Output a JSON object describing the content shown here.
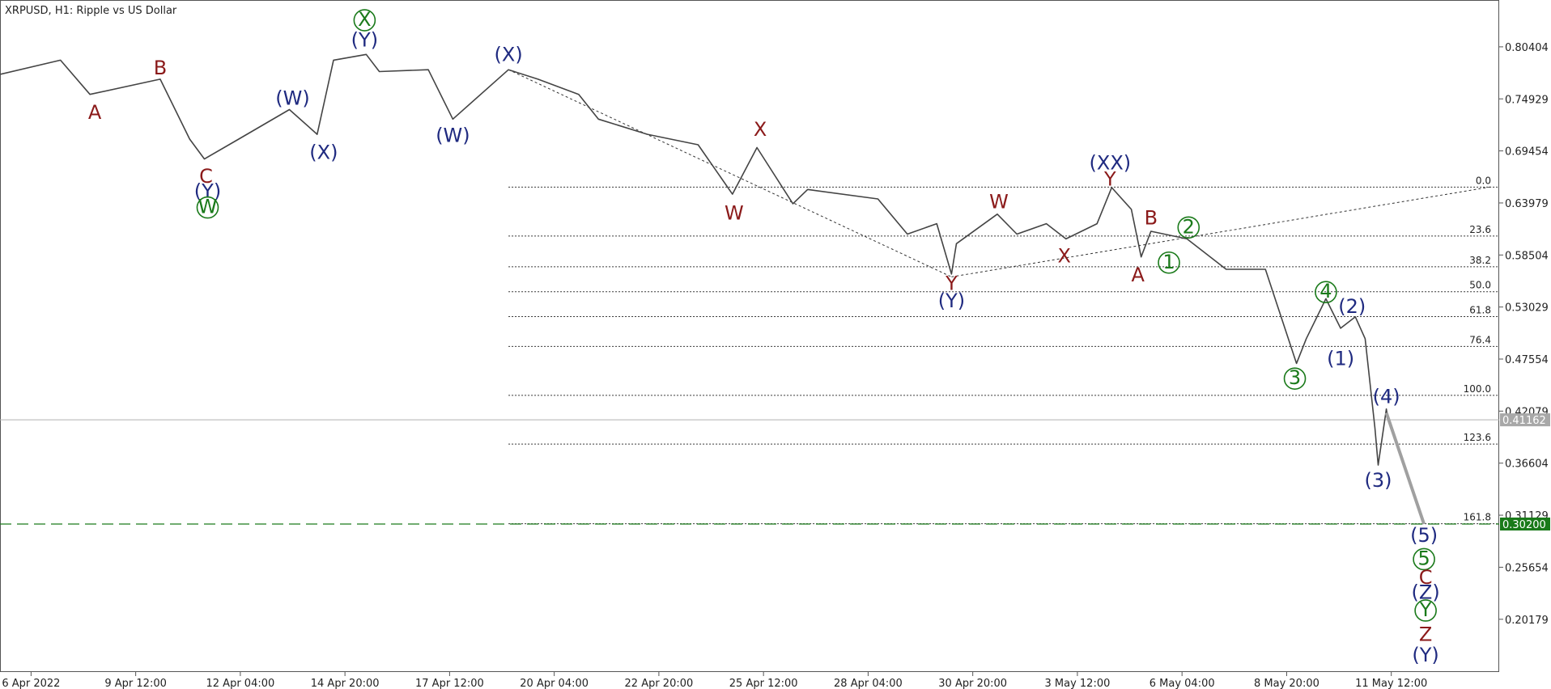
{
  "chart_data": {
    "type": "line",
    "title": "XRPUSD, H1:  Ripple vs US Dollar",
    "xlim": [
      0,
      917
    ],
    "ylim": [
      0.1463,
      0.8533
    ],
    "xticks": [
      {
        "value": 19,
        "label": "6 Apr 2022"
      },
      {
        "value": 83,
        "label": "9 Apr 12:00"
      },
      {
        "value": 147,
        "label": "12 Apr 04:00"
      },
      {
        "value": 211,
        "label": "14 Apr 20:00"
      },
      {
        "value": 275,
        "label": "17 Apr 12:00"
      },
      {
        "value": 339,
        "label": "20 Apr 04:00"
      },
      {
        "value": 403,
        "label": "22 Apr 20:00"
      },
      {
        "value": 467,
        "label": "25 Apr 12:00"
      },
      {
        "value": 531,
        "label": "28 Apr 04:00"
      },
      {
        "value": 595,
        "label": "30 Apr 20:00"
      },
      {
        "value": 659,
        "label": "3 May 12:00"
      },
      {
        "value": 723,
        "label": "6 May 04:00"
      },
      {
        "value": 787,
        "label": "8 May 20:00"
      },
      {
        "value": 851,
        "label": "11 May 12:00"
      }
    ],
    "yticks": [
      0.80404,
      0.74929,
      0.69454,
      0.63979,
      0.58504,
      0.53029,
      0.47554,
      0.42079,
      0.36604,
      0.31129,
      0.25654,
      0.20179
    ],
    "series": [
      {
        "color": "#444444",
        "x": [
          0,
          37,
          55,
          98,
          116,
          125,
          146,
          177,
          194,
          204,
          224,
          232,
          262,
          277,
          311,
          329,
          354,
          366,
          396,
          427,
          448,
          463,
          485,
          494,
          537,
          555,
          573,
          582,
          585,
          610,
          622,
          640,
          652,
          671,
          680,
          692,
          698,
          704,
          726,
          750,
          774,
          793,
          799,
          811,
          820,
          829,
          835,
          841,
          843,
          848,
          849
        ],
        "values": [
          0.775,
          0.79,
          0.754,
          0.77,
          0.707,
          0.686,
          0.707,
          0.738,
          0.712,
          0.79,
          0.796,
          0.778,
          0.78,
          0.728,
          0.78,
          0.77,
          0.754,
          0.728,
          0.712,
          0.701,
          0.649,
          0.698,
          0.639,
          0.654,
          0.644,
          0.607,
          0.618,
          0.565,
          0.597,
          0.628,
          0.607,
          0.618,
          0.602,
          0.618,
          0.656,
          0.633,
          0.583,
          0.61,
          0.602,
          0.57,
          0.57,
          0.471,
          0.497,
          0.539,
          0.508,
          0.52,
          0.497,
          0.403,
          0.364,
          0.423,
          0.411
        ]
      }
    ],
    "fib_start": 311,
    "fib_levels": [
      {
        "label": "0.0",
        "price": 0.6564
      },
      {
        "label": "23.6",
        "price": 0.605
      },
      {
        "label": "38.2",
        "price": 0.5726
      },
      {
        "label": "50.0",
        "price": 0.5464
      },
      {
        "label": "61.8",
        "price": 0.5202
      },
      {
        "label": "76.4",
        "price": 0.4888
      },
      {
        "label": "100.0",
        "price": 0.4374
      },
      {
        "label": "123.6",
        "price": 0.3861
      },
      {
        "label": "161.8",
        "price": 0.3023
      }
    ],
    "current_price": 0.41162,
    "target_price": {
      "value": 0.302,
      "label": "0.30200"
    },
    "target_color": "#1a7a1a",
    "trendlines": [
      {
        "x": [
          311,
          582
        ],
        "y": [
          0.78,
          0.562
        ]
      },
      {
        "x": [
          582,
          913
        ],
        "y": [
          0.562,
          0.657
        ]
      }
    ],
    "projection": {
      "x": [
        848,
        871
      ],
      "y": [
        0.419,
        0.302
      ]
    },
    "wave_labels": [
      {
        "text": "A",
        "x": 58,
        "y": 0.735,
        "color": "#8b1a1a"
      },
      {
        "text": "B",
        "x": 98,
        "y": 0.782,
        "color": "#8b1a1a"
      },
      {
        "text": "C",
        "x": 126,
        "y": 0.668,
        "color": "#8b1a1a"
      },
      {
        "text": "(Y)",
        "x": 127,
        "y": 0.652,
        "color": "#1f2a80"
      },
      {
        "text": "W",
        "x": 127,
        "y": 0.635,
        "color": "#1a7a1a",
        "circle": true
      },
      {
        "text": "(W)",
        "x": 179,
        "y": 0.75,
        "color": "#1f2a80"
      },
      {
        "text": "(X)",
        "x": 198,
        "y": 0.693,
        "color": "#1f2a80"
      },
      {
        "text": "X",
        "x": 223,
        "y": 0.832,
        "color": "#1a7a1a",
        "circle": true
      },
      {
        "text": "(Y)",
        "x": 223,
        "y": 0.811,
        "color": "#1f2a80"
      },
      {
        "text": "(W)",
        "x": 277,
        "y": 0.711,
        "color": "#1f2a80"
      },
      {
        "text": "(X)",
        "x": 311,
        "y": 0.796,
        "color": "#1f2a80"
      },
      {
        "text": "X",
        "x": 465,
        "y": 0.717,
        "color": "#8b1a1a"
      },
      {
        "text": "W",
        "x": 449,
        "y": 0.629,
        "color": "#8b1a1a"
      },
      {
        "text": "Y",
        "x": 582,
        "y": 0.555,
        "color": "#8b1a1a"
      },
      {
        "text": "(Y)",
        "x": 582,
        "y": 0.537,
        "color": "#1f2a80"
      },
      {
        "text": "W",
        "x": 611,
        "y": 0.641,
        "color": "#8b1a1a"
      },
      {
        "text": "X",
        "x": 651,
        "y": 0.584,
        "color": "#8b1a1a"
      },
      {
        "text": "(XX)",
        "x": 679,
        "y": 0.682,
        "color": "#1f2a80"
      },
      {
        "text": "Y",
        "x": 679,
        "y": 0.665,
        "color": "#8b1a1a"
      },
      {
        "text": "B",
        "x": 704,
        "y": 0.624,
        "color": "#8b1a1a"
      },
      {
        "text": "A",
        "x": 696,
        "y": 0.564,
        "color": "#8b1a1a"
      },
      {
        "text": "1",
        "x": 715,
        "y": 0.577,
        "color": "#1a7a1a",
        "circle": true
      },
      {
        "text": "2",
        "x": 727,
        "y": 0.614,
        "color": "#1a7a1a",
        "circle": true
      },
      {
        "text": "3",
        "x": 792,
        "y": 0.455,
        "color": "#1a7a1a",
        "circle": true
      },
      {
        "text": "4",
        "x": 811,
        "y": 0.546,
        "color": "#1a7a1a",
        "circle": true
      },
      {
        "text": "(1)",
        "x": 820,
        "y": 0.476,
        "color": "#1f2a80"
      },
      {
        "text": "(2)",
        "x": 827,
        "y": 0.531,
        "color": "#1f2a80"
      },
      {
        "text": "(4)",
        "x": 848,
        "y": 0.436,
        "color": "#1f2a80"
      },
      {
        "text": "(3)",
        "x": 843,
        "y": 0.348,
        "color": "#1f2a80"
      },
      {
        "text": "(5)",
        "x": 871,
        "y": 0.29,
        "color": "#1f2a80"
      },
      {
        "text": "5",
        "x": 871,
        "y": 0.265,
        "color": "#1a7a1a",
        "circle": true
      },
      {
        "text": "C",
        "x": 872,
        "y": 0.246,
        "color": "#8b1a1a"
      },
      {
        "text": "(Z)",
        "x": 872,
        "y": 0.23,
        "color": "#1f2a80"
      },
      {
        "text": "Y",
        "x": 872,
        "y": 0.211,
        "color": "#1a7a1a",
        "circle": true
      },
      {
        "text": "Z",
        "x": 872,
        "y": 0.186,
        "color": "#8b1a1a"
      },
      {
        "text": "(Y)",
        "x": 872,
        "y": 0.164,
        "color": "#1f2a80"
      }
    ]
  }
}
